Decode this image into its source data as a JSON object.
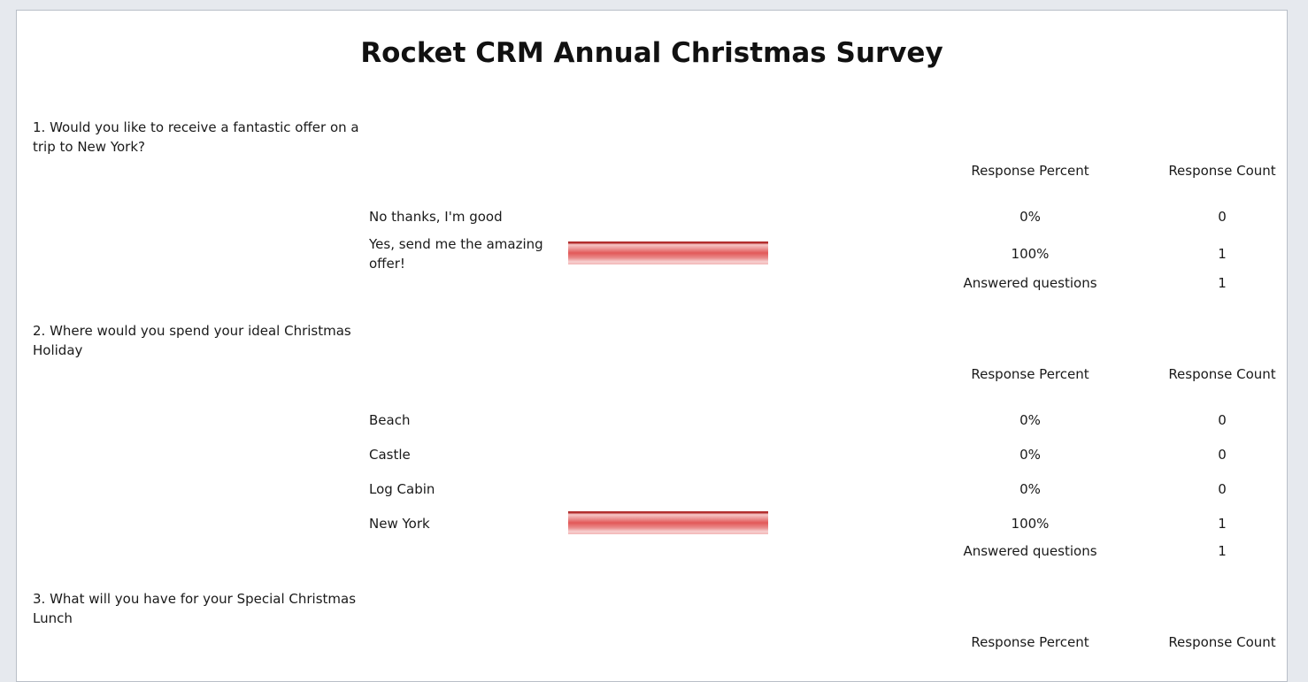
{
  "survey_title": "Rocket CRM Annual Christmas Survey",
  "colors": {
    "bar": "#e25858"
  },
  "questions": [
    {
      "text": "1. Would you like to receive a fantastic offer on a trip to New York?",
      "header_percent": "Response Percent",
      "header_count": "Response Count",
      "options": [
        {
          "label": "No thanks, I'm good",
          "percent": "0%",
          "count": "0",
          "fill": 0
        },
        {
          "label": "Yes, send me the amazing offer!",
          "percent": "100%",
          "count": "1",
          "fill": 1
        }
      ],
      "answered_label": "Answered questions",
      "answered_count": "1"
    },
    {
      "text": "2. Where would you spend your ideal Christmas Holiday",
      "header_percent": "Response Percent",
      "header_count": "Response Count",
      "options": [
        {
          "label": "Beach",
          "percent": "0%",
          "count": "0",
          "fill": 0
        },
        {
          "label": "Castle",
          "percent": "0%",
          "count": "0",
          "fill": 0
        },
        {
          "label": "Log Cabin",
          "percent": "0%",
          "count": "0",
          "fill": 0
        },
        {
          "label": "New York",
          "percent": "100%",
          "count": "1",
          "fill": 1
        }
      ],
      "answered_label": "Answered questions",
      "answered_count": "1"
    },
    {
      "text": "3. What will you have for your Special Christmas Lunch",
      "header_percent": "Response Percent",
      "header_count": "Response Count"
    }
  ]
}
